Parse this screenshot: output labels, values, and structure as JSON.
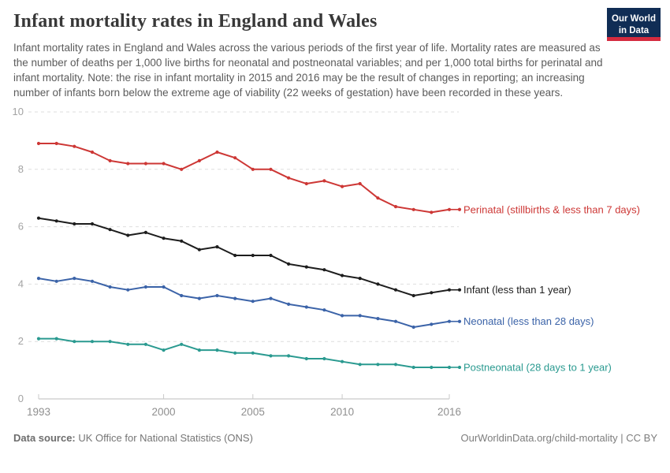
{
  "header": {
    "title": "Infant mortality rates in England and Wales",
    "subtitle": "Infant mortality rates in England and Wales across the various periods of the first year of life. Mortality rates are measured as the number of deaths per 1,000 live births for neonatal and postneonatal variables; and per 1,000 total births for perinatal and infant mortality. Note: the rise in infant mortality in 2015 and 2016 may be the result of changes in reporting; an increasing number of infants born below the extreme age of viability (22 weeks of gestation) have been recorded in these years."
  },
  "logo": {
    "text_line1": "Our World",
    "text_line2": "in Data",
    "bg_color": "#102d55",
    "bar_color": "#d42b3f"
  },
  "chart_data": {
    "type": "line",
    "title": "Infant mortality rates in England and Wales",
    "xlabel": "",
    "ylabel": "",
    "x": [
      1993,
      1994,
      1995,
      1996,
      1997,
      1998,
      1999,
      2000,
      2001,
      2002,
      2003,
      2004,
      2005,
      2006,
      2007,
      2008,
      2009,
      2010,
      2011,
      2012,
      2013,
      2014,
      2015,
      2016
    ],
    "series": [
      {
        "name": "Perinatal (stillbirths & less than 7 days)",
        "color": "#cd3735",
        "values": [
          8.9,
          8.9,
          8.8,
          8.6,
          8.3,
          8.2,
          8.2,
          8.2,
          8.0,
          8.3,
          8.6,
          8.4,
          8.0,
          8.0,
          7.7,
          7.5,
          7.6,
          7.4,
          7.5,
          7.0,
          6.7,
          6.6,
          6.5,
          6.6
        ]
      },
      {
        "name": "Infant (less than 1 year)",
        "color": "#1d1d1d",
        "values": [
          6.3,
          6.2,
          6.1,
          6.1,
          5.9,
          5.7,
          5.8,
          5.6,
          5.5,
          5.2,
          5.3,
          5.0,
          5.0,
          5.0,
          4.7,
          4.6,
          4.5,
          4.3,
          4.2,
          4.0,
          3.8,
          3.6,
          3.7,
          3.8
        ]
      },
      {
        "name": "Neonatal (less than 28 days)",
        "color": "#3b63a8",
        "values": [
          4.2,
          4.1,
          4.2,
          4.1,
          3.9,
          3.8,
          3.9,
          3.9,
          3.6,
          3.5,
          3.6,
          3.5,
          3.4,
          3.5,
          3.3,
          3.2,
          3.1,
          2.9,
          2.9,
          2.8,
          2.7,
          2.5,
          2.6,
          2.7
        ]
      },
      {
        "name": "Postneonatal (28 days to 1 year)",
        "color": "#2a9a90",
        "values": [
          2.1,
          2.1,
          2.0,
          2.0,
          2.0,
          1.9,
          1.9,
          1.7,
          1.9,
          1.7,
          1.7,
          1.6,
          1.6,
          1.5,
          1.5,
          1.4,
          1.4,
          1.3,
          1.2,
          1.2,
          1.2,
          1.1,
          1.1,
          1.1
        ]
      }
    ],
    "ylim": [
      0,
      10
    ],
    "yticks": [
      0,
      2,
      4,
      6,
      8,
      10
    ],
    "xticks": [
      1993,
      2000,
      2005,
      2010,
      2016
    ],
    "grid": "horizontal-dashed",
    "legend_position": "end-of-line-right"
  },
  "footer": {
    "source_label": "Data source:",
    "source_value": "UK Office for National Statistics (ONS)",
    "credit": "OurWorldinData.org/child-mortality | CC BY"
  }
}
